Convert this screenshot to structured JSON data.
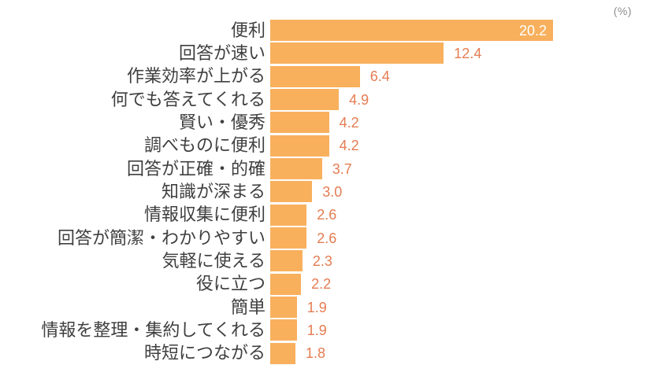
{
  "chart": {
    "unit_label": "(%)"
  },
  "colors": {
    "background": "#ffffff",
    "bar": "#f8b05d",
    "value_label": "#e57c52",
    "value_label_inside": "#ffffff",
    "category_label": "#3f3f3f",
    "unit_label": "#8c8c8c"
  },
  "chart_data": {
    "type": "bar",
    "orientation": "horizontal",
    "unit": "%",
    "title": "",
    "xlabel": "",
    "ylabel": "",
    "xlim": [
      0,
      20.2
    ],
    "grid": false,
    "legend": false,
    "categories": [
      "便利",
      "回答が速い",
      "作業効率が上がる",
      "何でも答えてくれる",
      "賢い・優秀",
      "調べものに便利",
      "回答が正確・的確",
      "知識が深まる",
      "情報収集に便利",
      "回答が簡潔・わかりやすい",
      "気軽に使える",
      "役に立つ",
      "簡単",
      "情報を整理・集約してくれる",
      "時短につながる"
    ],
    "values": [
      20.2,
      12.4,
      6.4,
      4.9,
      4.2,
      4.2,
      3.7,
      3.0,
      2.6,
      2.6,
      2.3,
      2.2,
      1.9,
      1.9,
      1.8
    ],
    "value_labels": [
      "20.2",
      "12.4",
      "6.4",
      "4.9",
      "4.2",
      "4.2",
      "3.7",
      "3.0",
      "2.6",
      "2.6",
      "2.3",
      "2.2",
      "1.9",
      "1.9",
      "1.8"
    ],
    "value_label_inside": [
      true,
      false,
      false,
      false,
      false,
      false,
      false,
      false,
      false,
      false,
      false,
      false,
      false,
      false,
      false
    ]
  }
}
